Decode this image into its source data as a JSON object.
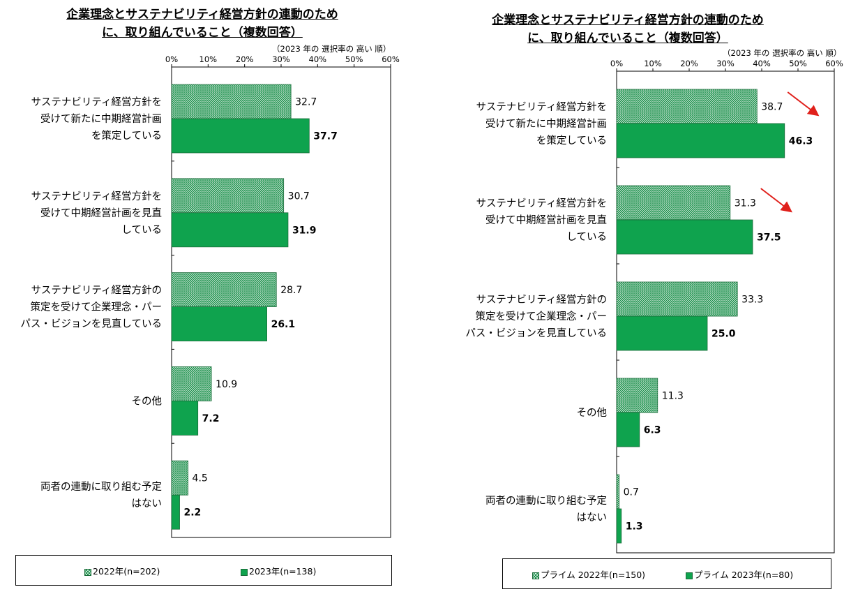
{
  "chart_data": [
    {
      "type": "bar",
      "title_line1": "企業理念とサステナビリティ経営方針の連動のため",
      "title_line2": "に、取り組んでいること（複数回答）",
      "subtitle": "（2023 年の 選択率の 高い 順）",
      "xlim": [
        0,
        60
      ],
      "x_ticks": [
        "0%",
        "10%",
        "20%",
        "30%",
        "40%",
        "50%",
        "60%"
      ],
      "categories": [
        [
          "サステナビリティ経営方針を",
          "受けて新たに中期経営計画",
          "を策定している"
        ],
        [
          "サステナビリティ経営方針を",
          "受けて中期経営計画を見直",
          "している"
        ],
        [
          "サステナビリティ経営方針の",
          "策定を受けて企業理念・パー",
          "パス・ビジョンを見直している"
        ],
        [
          "その他"
        ],
        [
          "両者の連動に取り組む予定",
          "はない"
        ]
      ],
      "series": [
        {
          "name": "2022年(n=202)",
          "values": [
            32.7,
            30.7,
            28.7,
            10.9,
            4.5
          ],
          "labels": [
            "32.7",
            "30.7",
            "28.7",
            "10.9",
            "4.5"
          ]
        },
        {
          "name": "2023年(n=138)",
          "values": [
            37.7,
            31.9,
            26.1,
            7.2,
            2.2
          ],
          "labels": [
            "37.7",
            "31.9",
            "26.1",
            "7.2",
            "2.2"
          ]
        }
      ],
      "arrows": []
    },
    {
      "type": "bar",
      "title_line1": "企業理念とサステナビリティ経営方針の連動のため",
      "title_line2": "に、取り組んでいること（複数回答）",
      "subtitle": "（2023 年の 選択率の 高い 順）",
      "xlim": [
        0,
        60
      ],
      "x_ticks": [
        "0%",
        "10%",
        "20%",
        "30%",
        "40%",
        "50%",
        "60%"
      ],
      "categories": [
        [
          "サステナビリティ経営方針を",
          "受けて新たに中期経営計画",
          "を策定している"
        ],
        [
          "サステナビリティ経営方針を",
          "受けて中期経営計画を見直",
          "している"
        ],
        [
          "サステナビリティ経営方針の",
          "策定を受けて企業理念・パー",
          "パス・ビジョンを見直している"
        ],
        [
          "その他"
        ],
        [
          "両者の連動に取り組む予定",
          "はない"
        ]
      ],
      "series": [
        {
          "name": "プライム 2022年(n=150)",
          "values": [
            38.7,
            31.3,
            33.3,
            11.3,
            0.7
          ],
          "labels": [
            "38.7",
            "31.3",
            "33.3",
            "11.3",
            "0.7"
          ]
        },
        {
          "name": "プライム 2023年(n=80)",
          "values": [
            46.3,
            37.5,
            25.0,
            6.3,
            1.3
          ],
          "labels": [
            "46.3",
            "37.5",
            "25.0",
            "6.3",
            "1.3"
          ]
        }
      ],
      "arrows": [
        0,
        1
      ],
      "arrow_color": "#e0201b"
    }
  ],
  "colors": {
    "bar_2022_line": "#1a8f4a",
    "bar_2022_fill": "#e9f5ee",
    "bar_2023": "#0fa34e",
    "bar_stroke": "#1a6b39"
  }
}
